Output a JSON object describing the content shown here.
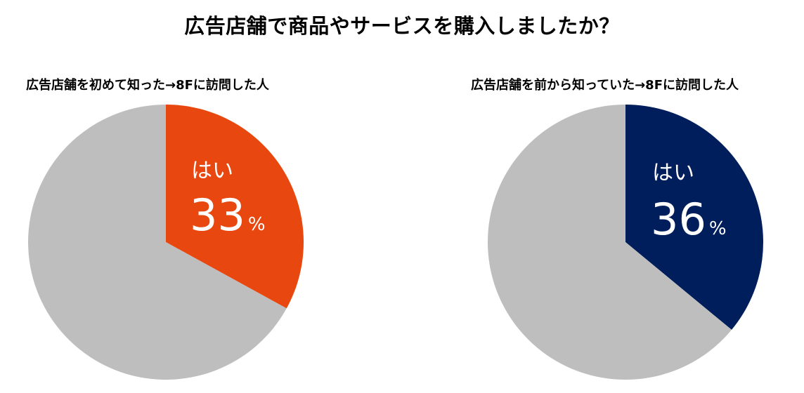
{
  "header": {
    "title": "広告店舗で商品やサービスを購入しましたか？"
  },
  "chart_data": [
    {
      "type": "pie",
      "title": "広告店舗を初めて知った→8Fに訪問した人",
      "slices": [
        {
          "label": "はい",
          "value": 33,
          "color": "#E8470F",
          "show_label": true
        },
        {
          "label": "",
          "value": 67,
          "color": "#BEBEBE",
          "show_label": false
        }
      ],
      "unit": "%"
    },
    {
      "type": "pie",
      "title": "広告店舗を前から知っていた→8Fに訪問した人",
      "slices": [
        {
          "label": "はい",
          "value": 36,
          "color": "#001E5C",
          "show_label": true
        },
        {
          "label": "",
          "value": 64,
          "color": "#BEBEBE",
          "show_label": false
        }
      ],
      "unit": "%"
    }
  ]
}
